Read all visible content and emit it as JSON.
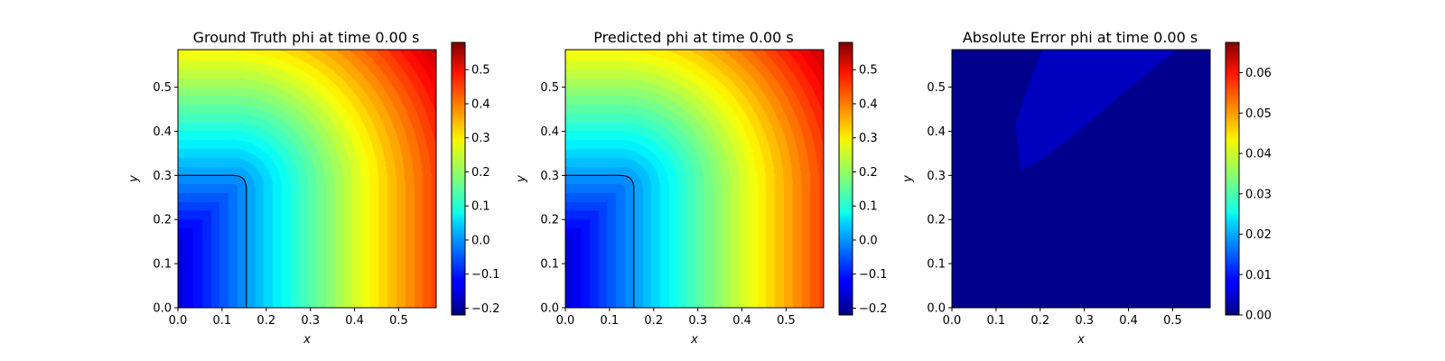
{
  "chart_data": [
    {
      "type": "heatmap",
      "title": "Ground Truth phi at time 0.00 s",
      "xlabel": "x",
      "ylabel": "y",
      "xlim": [
        0.0,
        0.585
      ],
      "ylim": [
        0.0,
        0.585
      ],
      "xticks": [
        "0.0",
        "0.1",
        "0.2",
        "0.3",
        "0.4",
        "0.5"
      ],
      "yticks": [
        "0.0",
        "0.1",
        "0.2",
        "0.3",
        "0.4",
        "0.5"
      ],
      "colormap": "jet",
      "field": {
        "kind": "signed-distance-to-rectangle",
        "rect_x": 0.155,
        "rect_y": 0.3,
        "corner_radius": 0.03
      },
      "zero_contour": true,
      "colorbar": {
        "min": -0.22,
        "max": 0.58,
        "ticks": [
          -0.2,
          -0.1,
          0.0,
          0.1,
          0.2,
          0.3,
          0.4,
          0.5
        ],
        "tick_labels": [
          "−0.2",
          "−0.1",
          "0.0",
          "0.1",
          "0.2",
          "0.3",
          "0.4",
          "0.5"
        ]
      }
    },
    {
      "type": "heatmap",
      "title": "Predicted phi at time 0.00 s",
      "xlabel": "x",
      "ylabel": "y",
      "xlim": [
        0.0,
        0.585
      ],
      "ylim": [
        0.0,
        0.585
      ],
      "xticks": [
        "0.0",
        "0.1",
        "0.2",
        "0.3",
        "0.4",
        "0.5"
      ],
      "yticks": [
        "0.0",
        "0.1",
        "0.2",
        "0.3",
        "0.4",
        "0.5"
      ],
      "colormap": "jet",
      "field": {
        "kind": "signed-distance-to-rectangle",
        "rect_x": 0.155,
        "rect_y": 0.3,
        "corner_radius": 0.03
      },
      "zero_contour": true,
      "colorbar": {
        "min": -0.22,
        "max": 0.58,
        "ticks": [
          -0.2,
          -0.1,
          0.0,
          0.1,
          0.2,
          0.3,
          0.4,
          0.5
        ],
        "tick_labels": [
          "−0.2",
          "−0.1",
          "0.0",
          "0.1",
          "0.2",
          "0.3",
          "0.4",
          "0.5"
        ]
      }
    },
    {
      "type": "heatmap",
      "title": "Absolute Error phi at time 0.00 s",
      "xlabel": "x",
      "ylabel": "y",
      "xlim": [
        0.0,
        0.585
      ],
      "ylim": [
        0.0,
        0.585
      ],
      "xticks": [
        "0.0",
        "0.1",
        "0.2",
        "0.3",
        "0.4",
        "0.5"
      ],
      "yticks": [
        "0.0",
        "0.1",
        "0.2",
        "0.3",
        "0.4",
        "0.5"
      ],
      "colormap": "jet",
      "field": {
        "kind": "regions",
        "background_value": 0.0,
        "regions": [
          {
            "value": 0.004,
            "polygon": [
              [
                0.205,
                0.585
              ],
              [
                0.51,
                0.585
              ],
              [
                0.38,
                0.48
              ],
              [
                0.3,
                0.41
              ],
              [
                0.21,
                0.34
              ],
              [
                0.155,
                0.31
              ],
              [
                0.145,
                0.42
              ],
              [
                0.19,
                0.55
              ]
            ]
          }
        ]
      },
      "zero_contour": false,
      "colorbar": {
        "min": 0.0,
        "max": 0.0675,
        "ticks": [
          0.0,
          0.01,
          0.02,
          0.03,
          0.04,
          0.05,
          0.06
        ],
        "tick_labels": [
          "0.00",
          "0.01",
          "0.02",
          "0.03",
          "0.04",
          "0.05",
          "0.06"
        ]
      }
    }
  ]
}
